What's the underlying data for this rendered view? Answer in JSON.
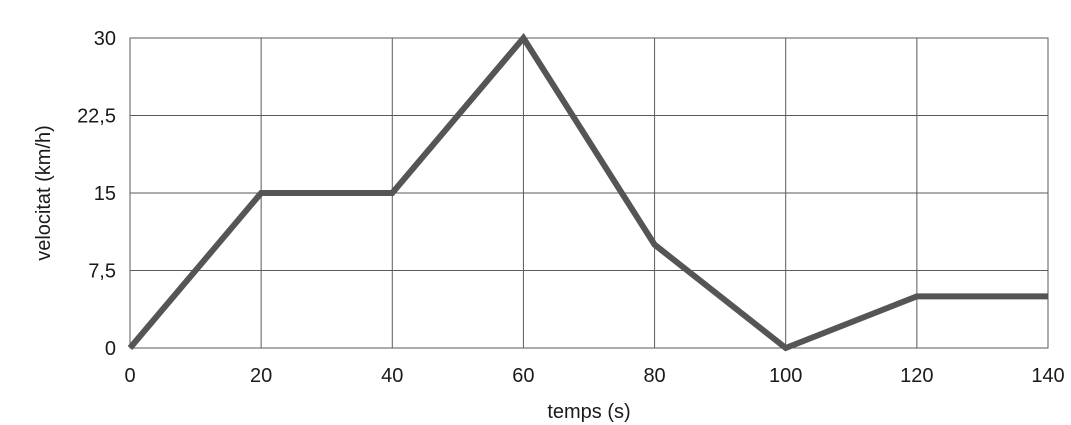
{
  "chart_data": {
    "type": "line",
    "title": "",
    "xlabel": "temps (s)",
    "ylabel": "velocitat (km/h)",
    "xlim": [
      0,
      140
    ],
    "ylim": [
      0,
      30
    ],
    "xticks": [
      0,
      20,
      40,
      60,
      80,
      100,
      120,
      140
    ],
    "yticks": [
      0,
      7.5,
      15,
      22.5,
      30
    ],
    "xtick_labels": [
      "0",
      "20",
      "40",
      "60",
      "80",
      "100",
      "120",
      "140"
    ],
    "ytick_labels": [
      "0",
      "7,5",
      "15",
      "22,5",
      "30"
    ],
    "grid": true,
    "series": [
      {
        "x": [
          0,
          20,
          40,
          60,
          80,
          100,
          120,
          140
        ],
        "y": [
          0,
          15,
          15,
          30,
          10,
          0,
          5,
          5
        ],
        "color": "#555555"
      }
    ]
  }
}
